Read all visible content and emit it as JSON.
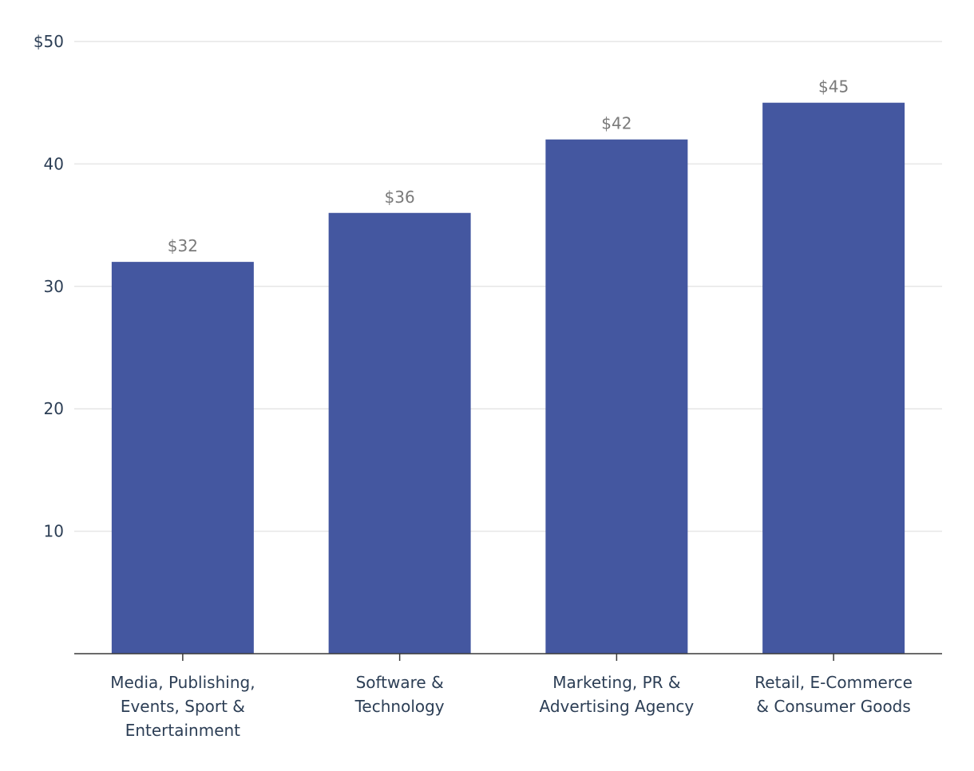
{
  "colors": {
    "bar": "#4457a0",
    "grid": "#e6e6e6",
    "axis": "#3a3a3a",
    "tick_text": "#2c3e55",
    "data_label_text": "#7a7a7a"
  },
  "chart_data": {
    "type": "bar",
    "categories": [
      [
        "Media, Publishing,",
        "Events, Sport &",
        "Entertainment"
      ],
      [
        "Software &",
        "Technology"
      ],
      [
        "Marketing, PR &",
        "Advertising Agency"
      ],
      [
        "Retail, E-Commerce",
        "& Consumer Goods"
      ]
    ],
    "values": [
      32,
      36,
      42,
      45
    ],
    "data_labels": [
      "$32",
      "$36",
      "$42",
      "$45"
    ],
    "y_ticks": [
      {
        "value": 10,
        "label": "10"
      },
      {
        "value": 20,
        "label": "20"
      },
      {
        "value": 30,
        "label": "30"
      },
      {
        "value": 40,
        "label": "40"
      },
      {
        "value": 50,
        "label": "$50"
      }
    ],
    "ylim": [
      0,
      50
    ],
    "grid": true,
    "legend": null
  }
}
